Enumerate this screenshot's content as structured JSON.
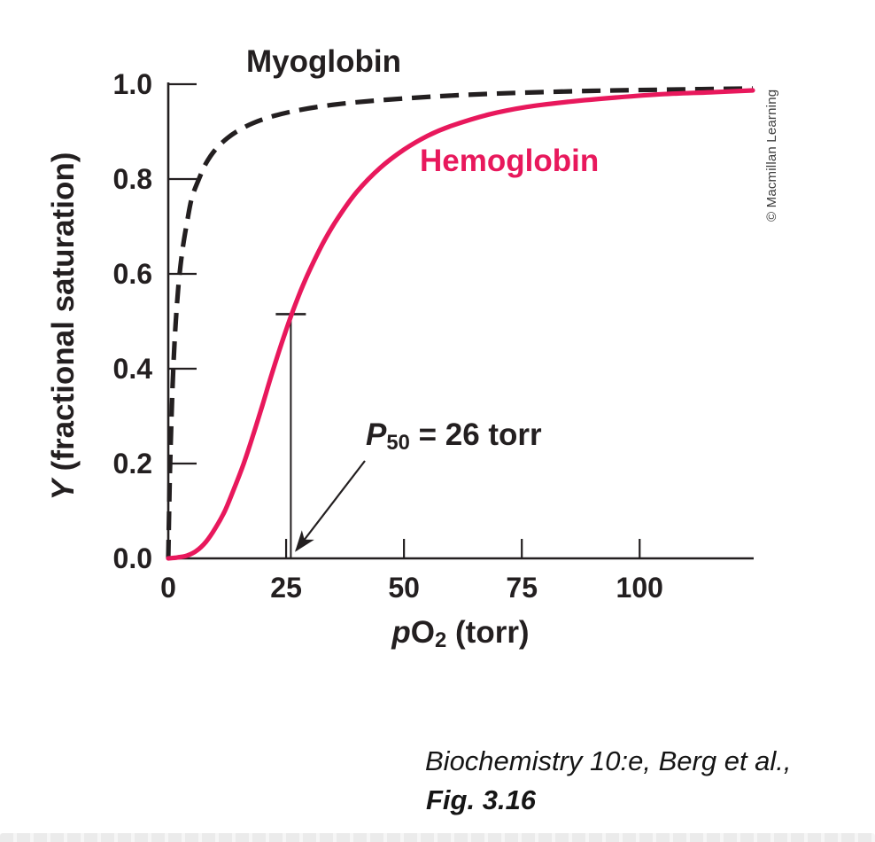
{
  "chart_data": {
    "type": "line",
    "title": "",
    "xlabel": "pO2 (torr)",
    "xlabel_parts": {
      "italic": "p",
      "normal": "O",
      "sub": "2",
      "suffix": " (torr)"
    },
    "ylabel": "Y (fractional saturation)",
    "ylabel_parts": {
      "italic": "Y",
      "suffix": " (fractional saturation)"
    },
    "xlim": [
      0,
      124
    ],
    "ylim": [
      0,
      1.0
    ],
    "x_ticks": [
      0,
      25,
      50,
      75,
      100
    ],
    "y_ticks": [
      0,
      0.2,
      0.4,
      0.6,
      0.8,
      1.0
    ],
    "y_tick_labels": [
      "0.0",
      "0.2",
      "0.4",
      "0.6",
      "0.8",
      "1.0"
    ],
    "grid": false,
    "legend_position": "inline-curve-labels",
    "axis_color": "#231f20",
    "series": [
      {
        "name": "Myoglobin",
        "color": "#231f20",
        "line_style": "dashed",
        "points": [
          [
            0,
            0
          ],
          [
            0.3,
            0.16
          ],
          [
            0.7,
            0.3
          ],
          [
            1.1,
            0.41
          ],
          [
            1.6,
            0.5
          ],
          [
            2.2,
            0.58
          ],
          [
            3,
            0.65
          ],
          [
            4,
            0.71
          ],
          [
            5,
            0.76
          ],
          [
            6.5,
            0.8
          ],
          [
            8,
            0.833
          ],
          [
            10,
            0.862
          ],
          [
            12.5,
            0.886
          ],
          [
            15,
            0.903
          ],
          [
            18,
            0.918
          ],
          [
            22,
            0.932
          ],
          [
            27,
            0.944
          ],
          [
            33,
            0.954
          ],
          [
            40,
            0.962
          ],
          [
            50,
            0.97
          ],
          [
            62,
            0.977
          ],
          [
            75,
            0.982
          ],
          [
            90,
            0.986
          ],
          [
            105,
            0.9885
          ],
          [
            124,
            0.991
          ]
        ]
      },
      {
        "name": "Hemoglobin",
        "color": "#e8185c",
        "line_style": "solid",
        "points": [
          [
            0,
            0
          ],
          [
            2,
            0.002
          ],
          [
            4,
            0.006
          ],
          [
            6,
            0.016
          ],
          [
            8,
            0.035
          ],
          [
            10,
            0.064
          ],
          [
            12,
            0.1
          ],
          [
            14,
            0.148
          ],
          [
            16,
            0.2
          ],
          [
            18,
            0.26
          ],
          [
            20,
            0.324
          ],
          [
            22,
            0.39
          ],
          [
            24,
            0.452
          ],
          [
            26,
            0.51
          ],
          [
            28,
            0.562
          ],
          [
            30,
            0.608
          ],
          [
            33,
            0.668
          ],
          [
            36,
            0.718
          ],
          [
            40,
            0.773
          ],
          [
            45,
            0.824
          ],
          [
            50,
            0.862
          ],
          [
            55,
            0.891
          ],
          [
            60,
            0.912
          ],
          [
            68,
            0.936
          ],
          [
            76,
            0.952
          ],
          [
            85,
            0.963
          ],
          [
            95,
            0.972
          ],
          [
            105,
            0.979
          ],
          [
            115,
            0.983
          ],
          [
            124,
            0.987
          ]
        ]
      }
    ],
    "annotation": {
      "text": "P50 = 26 torr",
      "text_parts": {
        "italic": "P",
        "sub": "50",
        "suffix": " = 26 torr"
      },
      "x_torr": 26,
      "y_fraction": 0.515
    }
  },
  "credit": {
    "text": "© Macmillan Learning"
  },
  "caption": {
    "line1": "Biochemistry 10:e, Berg et al.,",
    "line2": "Fig. 3.16"
  }
}
